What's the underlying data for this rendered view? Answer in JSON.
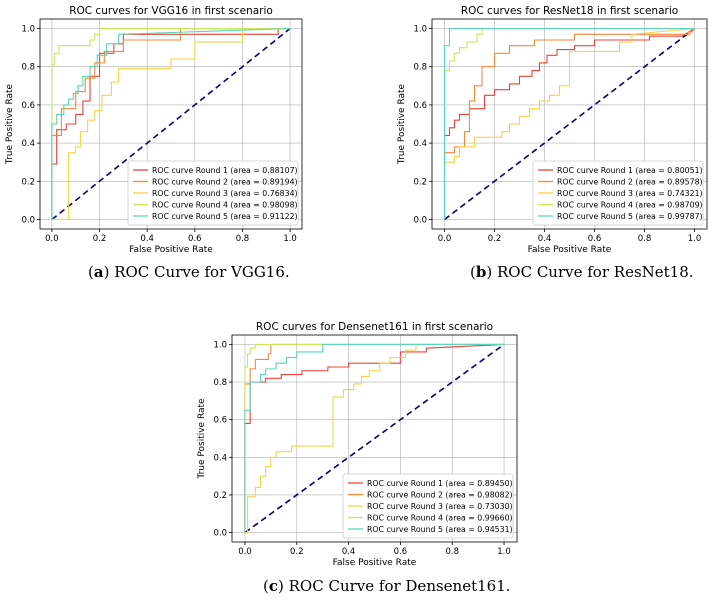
{
  "captions": [
    {
      "label": "a",
      "text": "ROC Curve for VGG16."
    },
    {
      "label": "b",
      "text": "ROC Curve for ResNet18."
    },
    {
      "label": "c",
      "text": "ROC Curve for Densenet161."
    }
  ],
  "chart_data": [
    {
      "type": "line",
      "title": "ROC curves for VGG16 in first scenario",
      "xlabel": "False Positive Rate",
      "ylabel": "True Positive Rate",
      "xlim": [
        -0.05,
        1.05
      ],
      "ylim": [
        -0.05,
        1.05
      ],
      "xticks": [
        "0.0",
        "0.2",
        "0.4",
        "0.6",
        "0.8",
        "1.0"
      ],
      "yticks": [
        "0.0",
        "0.2",
        "0.4",
        "0.6",
        "0.8",
        "1.0"
      ],
      "legend_position": "lower-right",
      "diagonal": {
        "x": [
          0,
          1
        ],
        "y": [
          0,
          1
        ],
        "color": "#000080",
        "style": "dashed"
      },
      "series": [
        {
          "name": "ROC curve Round 1 (area = 0.88107)",
          "color": "#e8453c",
          "x": [
            0,
            0,
            0.02,
            0.02,
            0.06,
            0.06,
            0.1,
            0.1,
            0.13,
            0.13,
            0.16,
            0.16,
            0.2,
            0.2,
            0.26,
            0.26,
            0.3,
            0.3,
            0.95,
            0.95,
            1
          ],
          "y": [
            0,
            0.29,
            0.29,
            0.47,
            0.47,
            0.5,
            0.5,
            0.55,
            0.55,
            0.62,
            0.62,
            0.75,
            0.75,
            0.87,
            0.87,
            0.92,
            0.92,
            0.97,
            0.97,
            1,
            1
          ]
        },
        {
          "name": "ROC curve Round 2 (area = 0.89194)",
          "color": "#f08a3c",
          "x": [
            0,
            0,
            0.04,
            0.04,
            0.1,
            0.1,
            0.14,
            0.14,
            0.18,
            0.18,
            0.22,
            0.22,
            0.3,
            0.3,
            0.54,
            0.54,
            1
          ],
          "y": [
            0,
            0.44,
            0.44,
            0.58,
            0.58,
            0.67,
            0.67,
            0.74,
            0.74,
            0.82,
            0.82,
            0.88,
            0.88,
            0.94,
            0.94,
            1,
            1
          ]
        },
        {
          "name": "ROC curve Round 3 (area = 0.76834)",
          "color": "#f5d547",
          "x": [
            0,
            0.07,
            0.07,
            0.1,
            0.1,
            0.12,
            0.12,
            0.15,
            0.15,
            0.18,
            0.18,
            0.21,
            0.21,
            0.25,
            0.25,
            0.28,
            0.28,
            0.5,
            0.5,
            0.6,
            0.6,
            0.8,
            0.8,
            1
          ],
          "y": [
            0,
            0,
            0.35,
            0.35,
            0.38,
            0.38,
            0.46,
            0.46,
            0.52,
            0.52,
            0.57,
            0.57,
            0.65,
            0.65,
            0.72,
            0.72,
            0.79,
            0.79,
            0.84,
            0.84,
            0.93,
            0.93,
            1,
            1
          ]
        },
        {
          "name": "ROC curve Round 4 (area = 0.98098)",
          "color": "#c9e85c",
          "x": [
            0,
            0,
            0.01,
            0.01,
            0.03,
            0.03,
            0.16,
            0.16,
            0.18,
            0.18,
            0.2,
            0.2,
            1
          ],
          "y": [
            0,
            0.81,
            0.81,
            0.87,
            0.87,
            0.91,
            0.91,
            0.94,
            0.94,
            0.97,
            0.97,
            1,
            1
          ]
        },
        {
          "name": "ROC curve Round 5 (area = 0.91122)",
          "color": "#5ed4b8",
          "x": [
            0,
            0,
            0.02,
            0.02,
            0.05,
            0.05,
            0.07,
            0.07,
            0.09,
            0.09,
            0.11,
            0.11,
            0.13,
            0.13,
            0.16,
            0.16,
            0.19,
            0.19,
            0.23,
            0.23,
            0.28,
            0.28,
            1
          ],
          "y": [
            0,
            0.5,
            0.5,
            0.55,
            0.55,
            0.6,
            0.6,
            0.63,
            0.63,
            0.66,
            0.66,
            0.7,
            0.7,
            0.75,
            0.75,
            0.8,
            0.8,
            0.86,
            0.86,
            0.92,
            0.92,
            0.97,
            1
          ]
        }
      ]
    },
    {
      "type": "line",
      "title": "ROC curves for ResNet18 in first scenario",
      "xlabel": "False Positive Rate",
      "ylabel": "True Positive Rate",
      "xlim": [
        -0.05,
        1.05
      ],
      "ylim": [
        -0.05,
        1.05
      ],
      "xticks": [
        "0.0",
        "0.2",
        "0.4",
        "0.6",
        "0.8",
        "1.0"
      ],
      "yticks": [
        "0.0",
        "0.2",
        "0.4",
        "0.6",
        "0.8",
        "1.0"
      ],
      "legend_position": "lower-right",
      "diagonal": {
        "x": [
          0,
          1
        ],
        "y": [
          0,
          1
        ],
        "color": "#000080",
        "style": "dashed"
      },
      "series": [
        {
          "name": "ROC curve Round 1 (area = 0.80051)",
          "color": "#e8453c",
          "x": [
            0,
            0,
            0.02,
            0.02,
            0.04,
            0.04,
            0.06,
            0.06,
            0.1,
            0.1,
            0.16,
            0.16,
            0.2,
            0.2,
            0.26,
            0.26,
            0.3,
            0.3,
            0.35,
            0.35,
            0.38,
            0.38,
            0.41,
            0.41,
            0.45,
            0.45,
            0.52,
            0.52,
            0.6,
            0.6,
            0.82,
            0.82,
            0.95,
            1
          ],
          "y": [
            0,
            0.44,
            0.44,
            0.48,
            0.48,
            0.52,
            0.52,
            0.55,
            0.55,
            0.58,
            0.58,
            0.65,
            0.65,
            0.68,
            0.68,
            0.71,
            0.71,
            0.75,
            0.75,
            0.78,
            0.78,
            0.82,
            0.82,
            0.86,
            0.86,
            0.89,
            0.89,
            0.91,
            0.91,
            0.94,
            0.94,
            0.96,
            0.96,
            1
          ]
        },
        {
          "name": "ROC curve Round 2 (area = 0.89578)",
          "color": "#f08a3c",
          "x": [
            0,
            0,
            0.04,
            0.04,
            0.08,
            0.08,
            0.1,
            0.1,
            0.12,
            0.12,
            0.15,
            0.15,
            0.2,
            0.2,
            0.26,
            0.26,
            0.36,
            0.36,
            0.52,
            0.52,
            0.98,
            1
          ],
          "y": [
            0,
            0.35,
            0.35,
            0.38,
            0.38,
            0.46,
            0.46,
            0.62,
            0.62,
            0.7,
            0.7,
            0.8,
            0.8,
            0.87,
            0.87,
            0.91,
            0.91,
            0.94,
            0.94,
            0.97,
            0.97,
            1
          ]
        },
        {
          "name": "ROC curve Round 3 (area = 0.74321)",
          "color": "#f5d547",
          "x": [
            0,
            0,
            0.04,
            0.04,
            0.06,
            0.06,
            0.12,
            0.12,
            0.23,
            0.23,
            0.26,
            0.26,
            0.3,
            0.3,
            0.34,
            0.34,
            0.38,
            0.38,
            0.42,
            0.42,
            0.46,
            0.46,
            0.5,
            0.5,
            0.7,
            0.7,
            0.75,
            0.75,
            1
          ],
          "y": [
            0,
            0.3,
            0.3,
            0.33,
            0.33,
            0.38,
            0.38,
            0.43,
            0.43,
            0.46,
            0.46,
            0.5,
            0.5,
            0.54,
            0.54,
            0.58,
            0.58,
            0.62,
            0.62,
            0.65,
            0.65,
            0.7,
            0.7,
            0.88,
            0.88,
            0.93,
            0.93,
            0.97,
            1
          ]
        },
        {
          "name": "ROC curve Round 4 (area = 0.98709)",
          "color": "#c9e85c",
          "x": [
            0,
            0,
            0.02,
            0.02,
            0.04,
            0.04,
            0.06,
            0.06,
            0.09,
            0.09,
            0.13,
            0.13,
            0.15,
            0.15,
            1
          ],
          "y": [
            0,
            0.78,
            0.78,
            0.83,
            0.83,
            0.87,
            0.87,
            0.9,
            0.9,
            0.93,
            0.93,
            0.97,
            0.97,
            1,
            1
          ]
        },
        {
          "name": "ROC curve Round 5 (area = 0.99787)",
          "color": "#5ed4b8",
          "x": [
            0,
            0,
            0.02,
            0.02,
            1
          ],
          "y": [
            0,
            0.91,
            0.91,
            1,
            1
          ]
        }
      ]
    },
    {
      "type": "line",
      "title": "ROC curves for Densenet161 in first scenario",
      "xlabel": "False Positive Rate",
      "ylabel": "True Positive Rate",
      "xlim": [
        -0.05,
        1.05
      ],
      "ylim": [
        -0.05,
        1.05
      ],
      "xticks": [
        "0.0",
        "0.2",
        "0.4",
        "0.6",
        "0.8",
        "1.0"
      ],
      "yticks": [
        "0.0",
        "0.2",
        "0.4",
        "0.6",
        "0.8",
        "1.0"
      ],
      "legend_position": "lower-right",
      "diagonal": {
        "x": [
          0,
          1
        ],
        "y": [
          0,
          1
        ],
        "color": "#000080",
        "style": "dashed"
      },
      "series": [
        {
          "name": "ROC curve Round 1 (area = 0.89450)",
          "color": "#e8453c",
          "x": [
            0,
            0,
            0.02,
            0.02,
            0.08,
            0.08,
            0.14,
            0.14,
            0.22,
            0.22,
            0.32,
            0.32,
            0.4,
            0.4,
            0.6,
            0.6,
            0.7,
            0.7,
            1
          ],
          "y": [
            0,
            0.58,
            0.58,
            0.8,
            0.8,
            0.82,
            0.82,
            0.84,
            0.84,
            0.86,
            0.86,
            0.88,
            0.88,
            0.9,
            0.9,
            0.96,
            0.96,
            0.98,
            1
          ]
        },
        {
          "name": "ROC curve Round 2 (area = 0.98082)",
          "color": "#f08a3c",
          "x": [
            0,
            0,
            0.02,
            0.02,
            0.04,
            0.04,
            0.09,
            0.09,
            0.1,
            0.1,
            1
          ],
          "y": [
            0,
            0.79,
            0.79,
            0.87,
            0.87,
            0.92,
            0.92,
            0.95,
            0.95,
            1,
            1
          ]
        },
        {
          "name": "ROC curve Round 3 (area = 0.73030)",
          "color": "#f5d547",
          "x": [
            0,
            0.01,
            0.01,
            0.04,
            0.04,
            0.06,
            0.06,
            0.08,
            0.08,
            0.1,
            0.1,
            0.12,
            0.12,
            0.18,
            0.18,
            0.34,
            0.34,
            0.38,
            0.38,
            0.42,
            0.42,
            0.45,
            0.45,
            0.48,
            0.48,
            0.52,
            0.52,
            0.56,
            0.56,
            0.62,
            0.62,
            0.66,
            0.66,
            1
          ],
          "y": [
            0,
            0,
            0.19,
            0.19,
            0.24,
            0.24,
            0.3,
            0.3,
            0.35,
            0.35,
            0.4,
            0.4,
            0.43,
            0.43,
            0.46,
            0.46,
            0.72,
            0.72,
            0.76,
            0.76,
            0.79,
            0.79,
            0.83,
            0.83,
            0.86,
            0.86,
            0.9,
            0.9,
            0.93,
            0.93,
            0.97,
            0.97,
            1,
            1
          ]
        },
        {
          "name": "ROC curve Round 4 (area = 0.99660)",
          "color": "#c9e85c",
          "x": [
            0,
            0,
            0.01,
            0.01,
            0.02,
            0.02,
            0.04,
            0.04,
            1
          ],
          "y": [
            0,
            0.88,
            0.88,
            0.95,
            0.95,
            0.98,
            0.98,
            1,
            1
          ]
        },
        {
          "name": "ROC curve Round 5 (area = 0.94531)",
          "color": "#5ed4b8",
          "x": [
            0,
            0,
            0.02,
            0.02,
            0.06,
            0.06,
            0.08,
            0.08,
            0.12,
            0.12,
            0.16,
            0.16,
            0.2,
            0.2,
            0.3,
            0.3,
            1
          ],
          "y": [
            0,
            0.65,
            0.65,
            0.8,
            0.8,
            0.84,
            0.84,
            0.87,
            0.87,
            0.9,
            0.9,
            0.93,
            0.93,
            0.96,
            0.96,
            1,
            1
          ]
        }
      ]
    }
  ]
}
